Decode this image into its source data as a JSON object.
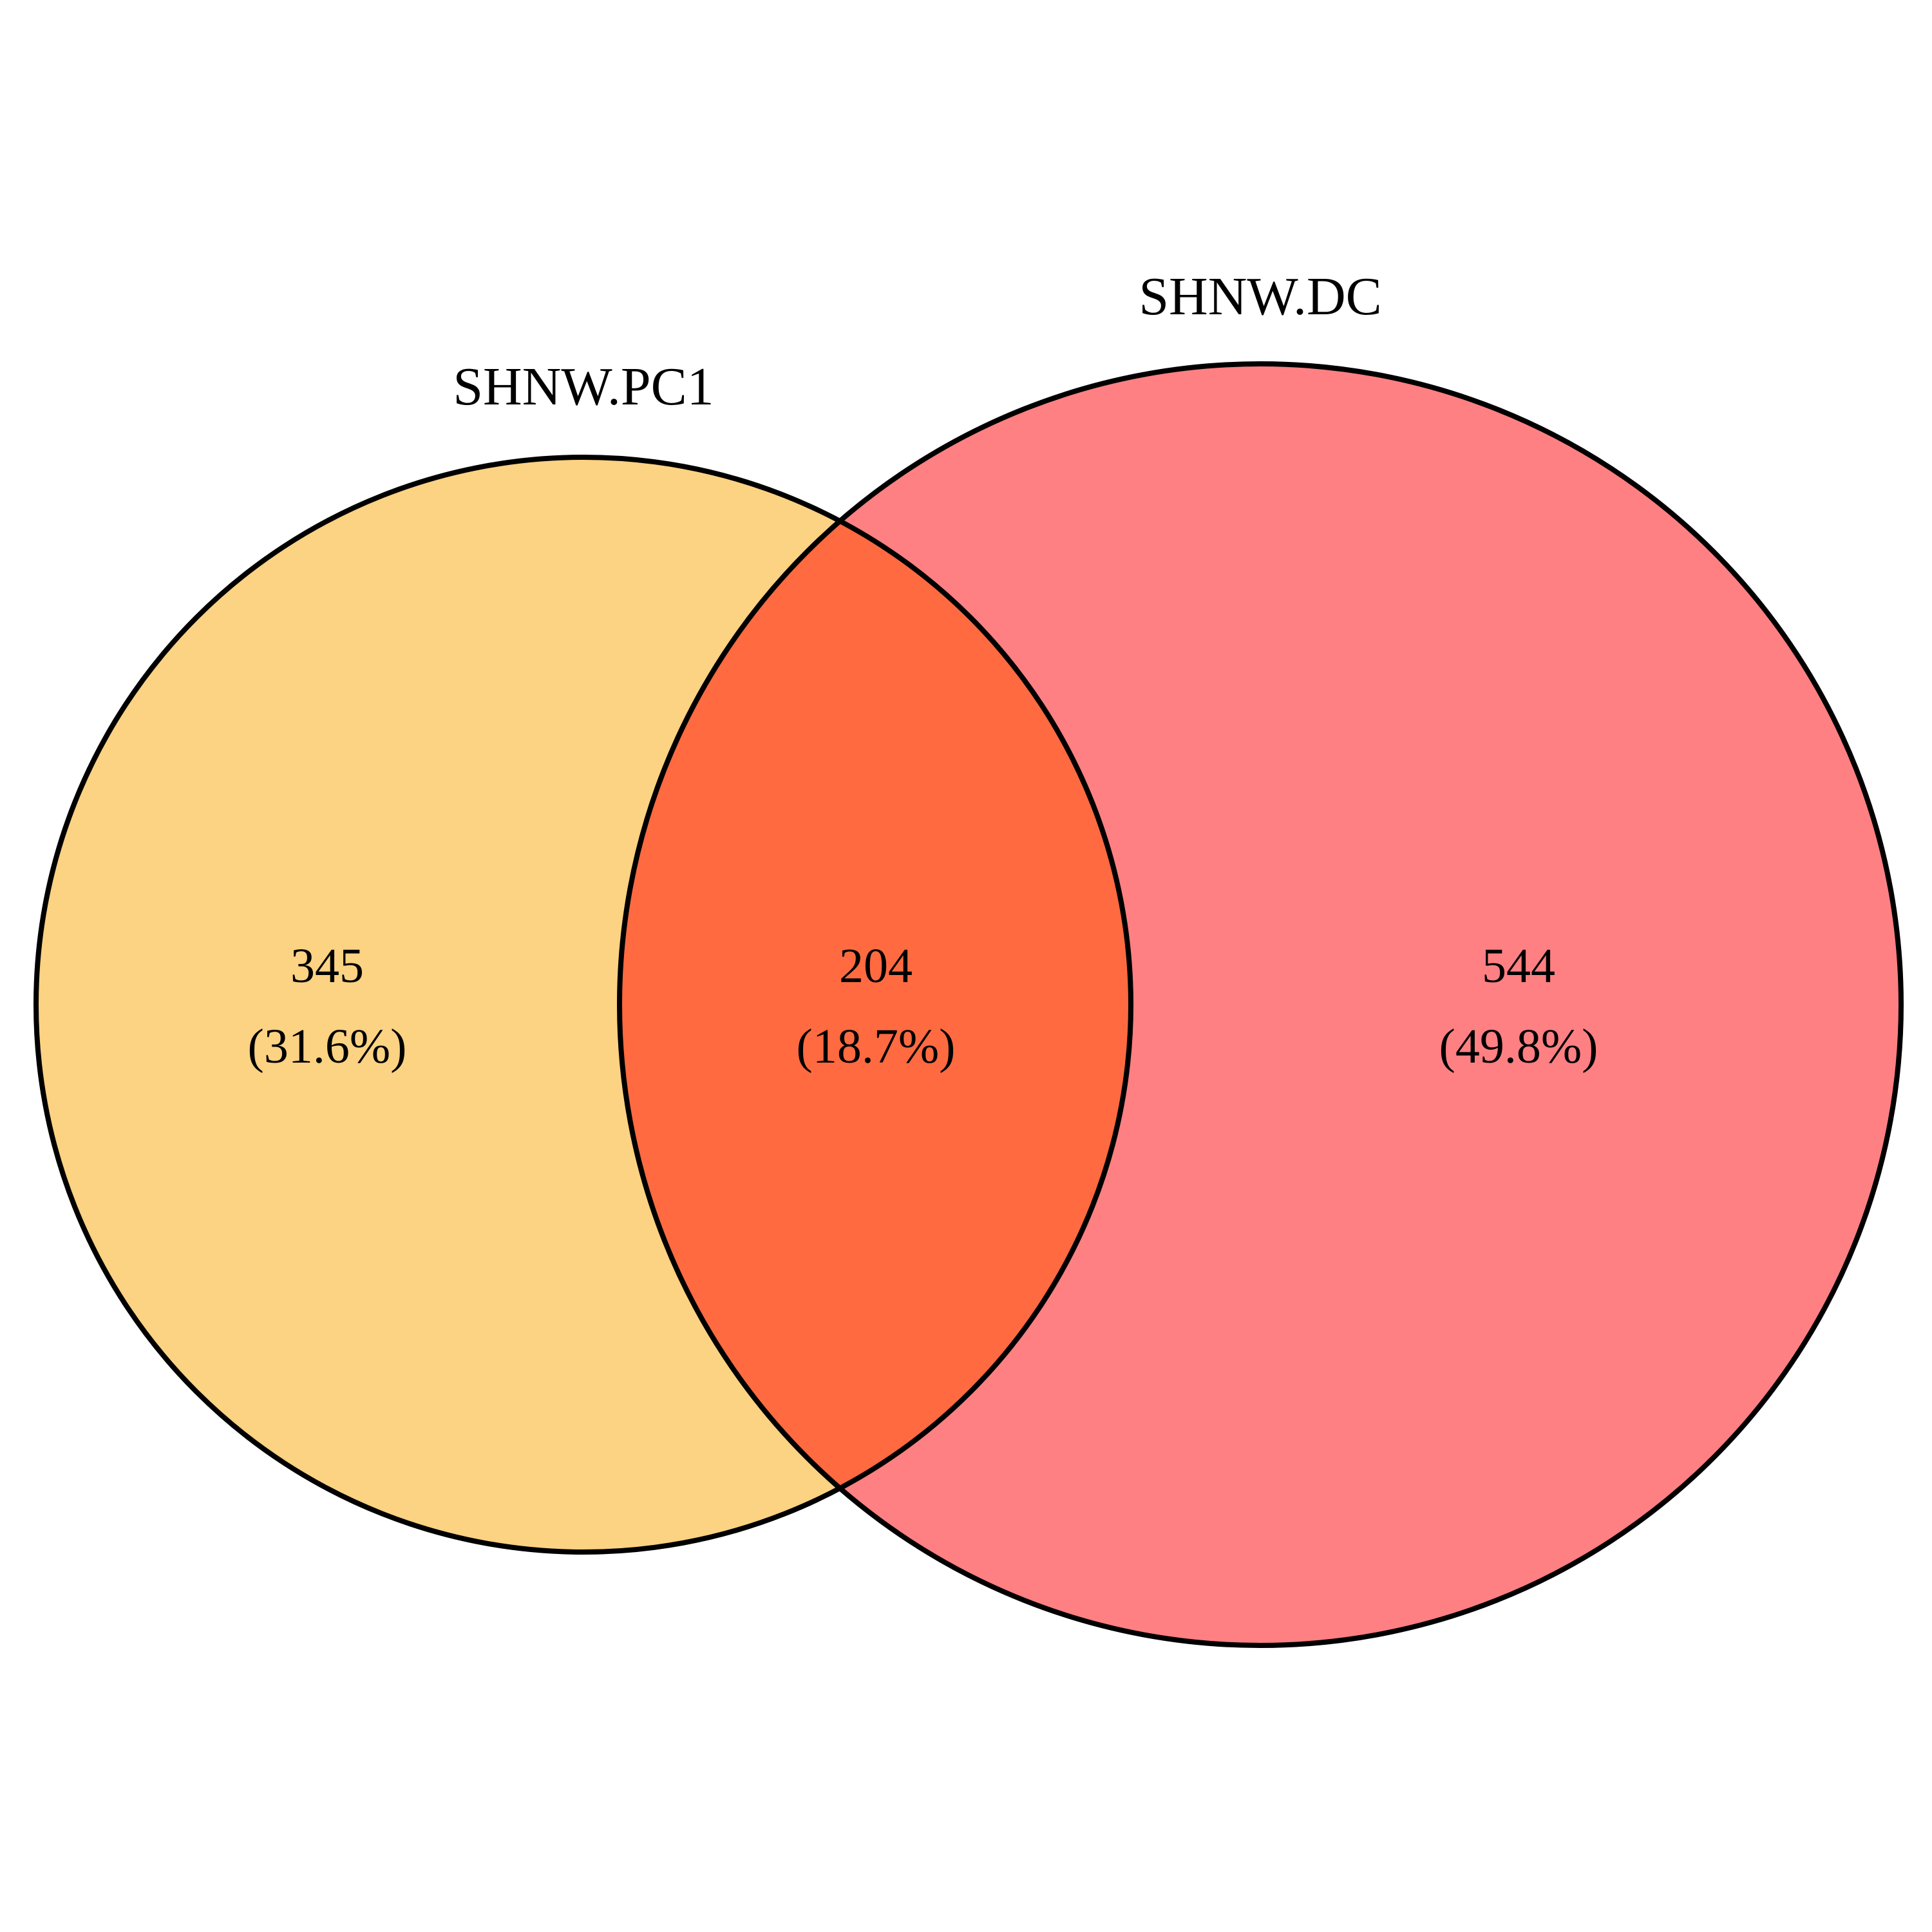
{
  "sets": [
    {
      "id": "pc1",
      "name": "SHNW.PC1",
      "size": 549,
      "fill_color": "#fcd283"
    },
    {
      "id": "dc",
      "name": "SHNW.DC",
      "size": 748,
      "fill_color": "#ff8082"
    }
  ],
  "regions": {
    "pc1_only": {
      "count": "345",
      "percent": "(31.6%)"
    },
    "intersection": {
      "count": "204",
      "percent": "(18.7%)",
      "fill_color": "#ff6a41"
    },
    "dc_only": {
      "count": "544",
      "percent": "(49.8%)"
    }
  }
}
